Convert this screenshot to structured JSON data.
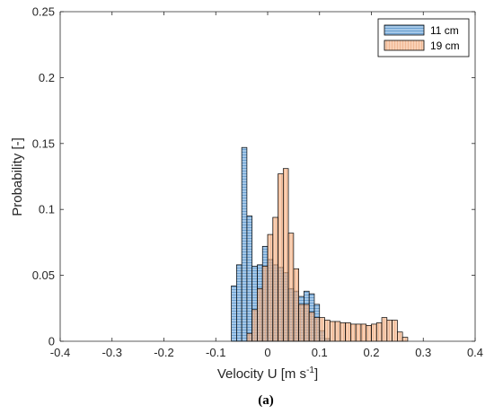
{
  "chart_data": {
    "type": "bar",
    "title": "",
    "panel_label": "(a)",
    "xlabel": "Velocity U [m s",
    "xlabel_sup": "-1",
    "xlabel_close": "]",
    "ylabel": "Probability [-]",
    "xlim": [
      -0.4,
      0.4
    ],
    "ylim": [
      0,
      0.25
    ],
    "xticks": [
      -0.4,
      -0.3,
      -0.2,
      -0.1,
      0,
      0.1,
      0.2,
      0.3,
      0.4
    ],
    "xtick_labels": [
      "-0.4",
      "-0.3",
      "-0.2",
      "-0.1",
      "0",
      "0.1",
      "0.2",
      "0.3",
      "0.4"
    ],
    "yticks": [
      0,
      0.05,
      0.1,
      0.15,
      0.2,
      0.25
    ],
    "ytick_labels": [
      "0",
      "0.05",
      "0.1",
      "0.15",
      "0.2",
      "0.25"
    ],
    "grid": false,
    "legend_position": "top-right",
    "series": [
      {
        "name": "11 cm",
        "color": "#5b9bd5",
        "bin_left": [
          -0.07,
          -0.06,
          -0.05,
          -0.04,
          -0.03,
          -0.02,
          -0.01,
          0.0,
          0.01,
          0.02,
          0.03,
          0.04,
          0.05,
          0.06,
          0.07,
          0.08,
          0.09,
          0.1,
          0.11
        ],
        "bin_right": [
          -0.06,
          -0.05,
          -0.04,
          -0.03,
          -0.02,
          -0.01,
          0.0,
          0.01,
          0.02,
          0.03,
          0.04,
          0.05,
          0.06,
          0.07,
          0.08,
          0.09,
          0.1,
          0.11,
          0.12
        ],
        "values": [
          0.042,
          0.058,
          0.147,
          0.095,
          0.057,
          0.058,
          0.072,
          0.062,
          0.058,
          0.056,
          0.052,
          0.04,
          0.038,
          0.034,
          0.038,
          0.036,
          0.028,
          0.008,
          0.002
        ]
      },
      {
        "name": "19 cm",
        "color": "#f4b183",
        "bin_left": [
          -0.04,
          -0.03,
          -0.02,
          -0.01,
          0.0,
          0.01,
          0.02,
          0.03,
          0.04,
          0.05,
          0.06,
          0.07,
          0.08,
          0.09,
          0.1,
          0.11,
          0.12,
          0.13,
          0.14,
          0.15,
          0.16,
          0.17,
          0.18,
          0.19,
          0.2,
          0.21,
          0.22,
          0.23,
          0.24,
          0.25,
          0.26
        ],
        "bin_right": [
          -0.03,
          -0.02,
          -0.01,
          0.0,
          0.01,
          0.02,
          0.03,
          0.04,
          0.05,
          0.06,
          0.07,
          0.08,
          0.09,
          0.1,
          0.11,
          0.12,
          0.13,
          0.14,
          0.15,
          0.16,
          0.17,
          0.18,
          0.19,
          0.2,
          0.21,
          0.22,
          0.23,
          0.24,
          0.25,
          0.26,
          0.27
        ],
        "values": [
          0.006,
          0.024,
          0.04,
          0.057,
          0.081,
          0.094,
          0.127,
          0.131,
          0.082,
          0.055,
          0.028,
          0.028,
          0.022,
          0.018,
          0.018,
          0.016,
          0.015,
          0.015,
          0.014,
          0.014,
          0.013,
          0.013,
          0.013,
          0.012,
          0.013,
          0.014,
          0.018,
          0.016,
          0.016,
          0.007,
          0.003
        ]
      }
    ]
  }
}
